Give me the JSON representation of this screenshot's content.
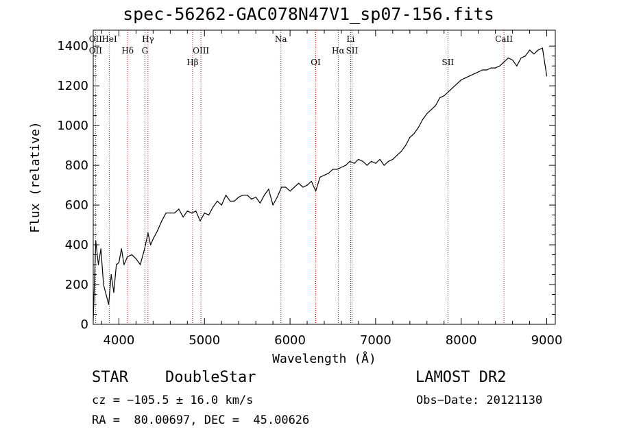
{
  "chart_data": {
    "type": "line",
    "title": "spec-56262-GAC078N47V1_sp07-156.fits",
    "xlabel": "Wavelength (Å)",
    "ylabel": "Flux (relative)",
    "xlim": [
      3700,
      9100
    ],
    "ylim": [
      0,
      1480
    ],
    "xticks": [
      4000,
      5000,
      6000,
      7000,
      8000,
      9000
    ],
    "yticks": [
      0,
      200,
      400,
      600,
      800,
      1000,
      1200,
      1400
    ],
    "line_color": "#000000",
    "marker_color": "#cc0000",
    "grid": false,
    "series": [
      {
        "x": [
          3700,
          3730,
          3760,
          3790,
          3820,
          3850,
          3880,
          3910,
          3940,
          3970,
          4000,
          4030,
          4060,
          4100,
          4150,
          4200,
          4250,
          4300,
          4340,
          4370,
          4400,
          4450,
          4500,
          4550,
          4600,
          4650,
          4700,
          4750,
          4800,
          4850,
          4900,
          4950,
          5000,
          5050,
          5100,
          5150,
          5200,
          5250,
          5300,
          5350,
          5400,
          5450,
          5500,
          5550,
          5600,
          5650,
          5700,
          5750,
          5800,
          5850,
          5900,
          5950,
          6000,
          6050,
          6100,
          6150,
          6200,
          6250,
          6300,
          6350,
          6400,
          6450,
          6500,
          6550,
          6600,
          6650,
          6700,
          6750,
          6800,
          6850,
          6900,
          6950,
          7000,
          7050,
          7100,
          7150,
          7200,
          7250,
          7300,
          7350,
          7400,
          7450,
          7500,
          7550,
          7600,
          7650,
          7700,
          7750,
          7800,
          7850,
          7900,
          7950,
          8000,
          8050,
          8100,
          8150,
          8200,
          8250,
          8300,
          8350,
          8400,
          8450,
          8500,
          8550,
          8600,
          8650,
          8700,
          8750,
          8800,
          8850,
          8900,
          8950,
          9000
        ],
        "y": [
          20,
          420,
          300,
          380,
          200,
          150,
          100,
          250,
          160,
          300,
          310,
          380,
          300,
          340,
          350,
          330,
          300,
          380,
          460,
          400,
          430,
          470,
          520,
          560,
          560,
          560,
          580,
          540,
          570,
          560,
          570,
          520,
          560,
          550,
          590,
          620,
          600,
          650,
          620,
          620,
          640,
          650,
          650,
          630,
          640,
          610,
          650,
          680,
          600,
          640,
          690,
          690,
          670,
          690,
          710,
          690,
          700,
          720,
          670,
          740,
          750,
          760,
          780,
          780,
          790,
          800,
          820,
          810,
          830,
          820,
          800,
          820,
          810,
          830,
          800,
          820,
          830,
          850,
          870,
          900,
          940,
          960,
          990,
          1030,
          1060,
          1080,
          1100,
          1140,
          1150,
          1170,
          1190,
          1210,
          1230,
          1240,
          1250,
          1260,
          1270,
          1280,
          1280,
          1290,
          1290,
          1300,
          1320,
          1340,
          1330,
          1300,
          1340,
          1350,
          1380,
          1360,
          1380,
          1390,
          1250
        ]
      }
    ],
    "line_markers": [
      {
        "label": "OII",
        "x": 3727,
        "row": "top"
      },
      {
        "label": "OII",
        "x": 3727,
        "row": "middle"
      },
      {
        "label": "HeI",
        "x": 3889,
        "row": "top"
      },
      {
        "label": "Hδ",
        "x": 4102,
        "row": "middle"
      },
      {
        "label": "Hγ",
        "x": 4340,
        "row": "top"
      },
      {
        "label": "G",
        "x": 4304,
        "row": "middle"
      },
      {
        "label": "OIII",
        "x": 4959,
        "row": "middle"
      },
      {
        "label": "Hβ",
        "x": 4861,
        "row": "bottom"
      },
      {
        "label": "Na",
        "x": 5893,
        "row": "top"
      },
      {
        "label": "OI",
        "x": 6300,
        "row": "bottom"
      },
      {
        "label": "Hα",
        "x": 6563,
        "row": "middle"
      },
      {
        "label": "Li",
        "x": 6708,
        "row": "top"
      },
      {
        "label": "SII",
        "x": 6724,
        "row": "middle"
      },
      {
        "label": "SII",
        "x": 7845,
        "row": "bottom"
      },
      {
        "label": "CaII",
        "x": 8500,
        "row": "top"
      }
    ]
  },
  "info": {
    "class": "STAR",
    "subclass": "DoubleStar",
    "survey": "LAMOST DR2",
    "cz": "cz = −105.5 ± 16.0 km/s",
    "obs_date": "Obs−Date: 20121130",
    "radec": "RA =  80.00697, DEC =  45.00626"
  }
}
